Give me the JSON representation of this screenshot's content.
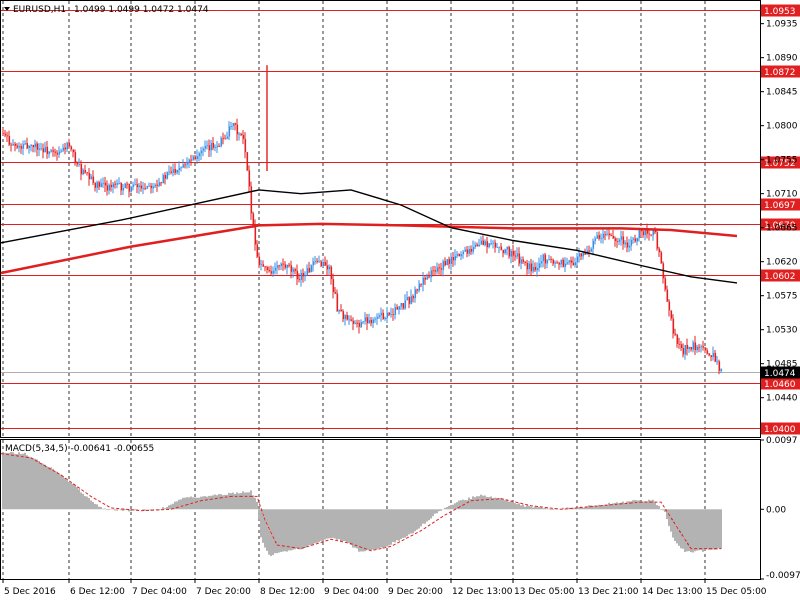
{
  "header": {
    "symbol": "EURUSD,H1",
    "ohlc": "1.0499 1.0499 1.0472 1.0474",
    "macd": "MACD(5,34,5) -0.00641 -0.00655"
  },
  "colors": {
    "background": "#ffffff",
    "bull": "#3a8ee6",
    "bear": "#e02020",
    "ma_fast": "#000000",
    "ma_slow": "#e02020",
    "level_line": "#e02020",
    "macd_hist": "#808080",
    "macd_signal": "#e02020"
  },
  "chart_data": [
    {
      "type": "candlestick",
      "title": "EURUSD,H1",
      "ylim": [
        1.0388,
        1.0965
      ],
      "y_ticks": [
        "1.0935",
        "1.0890",
        "1.0845",
        "1.0800",
        "1.0755",
        "1.0710",
        "1.0665",
        "1.0620",
        "1.0575",
        "1.0530",
        "1.0485",
        "1.0440"
      ],
      "x_labels": [
        "5 Dec 2016",
        "6 Dec 12:00",
        "7 Dec 04:00",
        "7 Dec 20:00",
        "8 Dec 12:00",
        "9 Dec 04:00",
        "9 Dec 20:00",
        "12 Dec 13:00",
        "13 Dec 05:00",
        "13 Dec 21:00",
        "14 Dec 13:00",
        "15 Dec 05:00"
      ],
      "levels": [
        "1.0953",
        "1.0872",
        "1.0752",
        "1.0697",
        "1.0670",
        "1.0602",
        "1.0460",
        "1.0400"
      ],
      "current_price": "1.0474",
      "close_path": [
        [
          0,
          1.079
        ],
        [
          8,
          1.077
        ],
        [
          16,
          1.0775
        ],
        [
          24,
          1.0765
        ],
        [
          28,
          1.076
        ],
        [
          33,
          1.0775
        ],
        [
          40,
          1.074
        ],
        [
          48,
          1.072
        ],
        [
          56,
          1.072
        ],
        [
          64,
          1.0718
        ],
        [
          72,
          1.072
        ],
        [
          80,
          1.0728
        ],
        [
          88,
          1.0745
        ],
        [
          96,
          1.076
        ],
        [
          104,
          1.077
        ],
        [
          110,
          1.078
        ],
        [
          116,
          1.08
        ],
        [
          121,
          1.078
        ],
        [
          123,
          1.074
        ],
        [
          125,
          1.069
        ],
        [
          128,
          1.0625
        ],
        [
          132,
          1.061
        ],
        [
          136,
          1.0608
        ],
        [
          140,
          1.0615
        ],
        [
          144,
          1.061
        ],
        [
          148,
          1.06
        ],
        [
          152,
          1.0605
        ],
        [
          156,
          1.0615
        ],
        [
          160,
          1.062
        ],
        [
          164,
          1.061
        ],
        [
          168,
          1.056
        ],
        [
          172,
          1.0545
        ],
        [
          176,
          1.0535
        ],
        [
          180,
          1.054
        ],
        [
          186,
          1.0545
        ],
        [
          192,
          1.055
        ],
        [
          200,
          1.056
        ],
        [
          206,
          1.0575
        ],
        [
          212,
          1.06
        ],
        [
          218,
          1.061
        ],
        [
          224,
          1.062
        ],
        [
          232,
          1.0635
        ],
        [
          240,
          1.0645
        ],
        [
          248,
          1.064
        ],
        [
          256,
          1.063
        ],
        [
          262,
          1.0615
        ],
        [
          266,
          1.061
        ],
        [
          270,
          1.0625
        ],
        [
          276,
          1.062
        ],
        [
          284,
          1.0618
        ],
        [
          292,
          1.063
        ],
        [
          298,
          1.065
        ],
        [
          304,
          1.0655
        ],
        [
          310,
          1.065
        ],
        [
          314,
          1.064
        ],
        [
          318,
          1.0655
        ],
        [
          323,
          1.0662
        ],
        [
          327,
          1.0655
        ],
        [
          331,
          1.06
        ],
        [
          334,
          1.055
        ],
        [
          337,
          1.052
        ],
        [
          340,
          1.05
        ],
        [
          344,
          1.051
        ],
        [
          348,
          1.0505
        ],
        [
          352,
          1.05
        ],
        [
          356,
          1.0499
        ],
        [
          360,
          1.0474
        ]
      ],
      "candle_count": 360,
      "x_tick_candles": [
        1,
        34,
        65,
        97,
        129,
        161,
        193,
        225,
        256,
        288,
        320,
        352
      ],
      "ma_fast": [
        [
          0,
          1.0645
        ],
        [
          60,
          1.0675
        ],
        [
          129,
          1.0715
        ],
        [
          150,
          1.071
        ],
        [
          175,
          1.0715
        ],
        [
          200,
          1.0695
        ],
        [
          225,
          1.0665
        ],
        [
          256,
          1.0648
        ],
        [
          288,
          1.0635
        ],
        [
          320,
          1.0615
        ],
        [
          345,
          1.06
        ],
        [
          368,
          1.0592
        ]
      ],
      "ma_slow": [
        [
          0,
          1.0605
        ],
        [
          65,
          1.064
        ],
        [
          129,
          1.0668
        ],
        [
          160,
          1.067
        ],
        [
          200,
          1.0668
        ],
        [
          256,
          1.0664
        ],
        [
          310,
          1.0664
        ],
        [
          335,
          1.0662
        ],
        [
          368,
          1.0654
        ]
      ]
    },
    {
      "type": "histogram",
      "title": "MACD(5,34,5)",
      "ylim": [
        -0.00976,
        0.0097
      ],
      "y_ticks": [
        "0.0097",
        "0.00",
        "-0.00976"
      ],
      "hist_path": [
        [
          0,
          0.008
        ],
        [
          12,
          0.0078
        ],
        [
          24,
          0.006
        ],
        [
          36,
          0.0035
        ],
        [
          46,
          0.001
        ],
        [
          52,
          0.0
        ],
        [
          65,
          -0.0002
        ],
        [
          80,
          0.0
        ],
        [
          90,
          0.0015
        ],
        [
          100,
          0.0018
        ],
        [
          115,
          0.0022
        ],
        [
          125,
          0.0025
        ],
        [
          128,
          0.0012
        ],
        [
          130,
          -0.004
        ],
        [
          134,
          -0.0065
        ],
        [
          140,
          -0.006
        ],
        [
          150,
          -0.0055
        ],
        [
          165,
          -0.004
        ],
        [
          172,
          -0.0045
        ],
        [
          180,
          -0.006
        ],
        [
          190,
          -0.0055
        ],
        [
          205,
          -0.0035
        ],
        [
          218,
          -0.0005
        ],
        [
          228,
          0.001
        ],
        [
          240,
          0.002
        ],
        [
          250,
          0.0015
        ],
        [
          262,
          0.0005
        ],
        [
          275,
          0.0
        ],
        [
          290,
          0.0003
        ],
        [
          305,
          0.0008
        ],
        [
          318,
          0.0012
        ],
        [
          326,
          0.0012
        ],
        [
          332,
          -0.0005
        ],
        [
          336,
          -0.004
        ],
        [
          342,
          -0.006
        ],
        [
          352,
          -0.0058
        ],
        [
          360,
          -0.0055
        ]
      ],
      "signal_path": [
        [
          0,
          0.0078
        ],
        [
          15,
          0.0072
        ],
        [
          30,
          0.0048
        ],
        [
          45,
          0.0018
        ],
        [
          55,
          0.0002
        ],
        [
          70,
          -0.0002
        ],
        [
          85,
          0.0
        ],
        [
          100,
          0.0012
        ],
        [
          115,
          0.0018
        ],
        [
          128,
          0.0018
        ],
        [
          132,
          -0.0015
        ],
        [
          138,
          -0.005
        ],
        [
          150,
          -0.0055
        ],
        [
          165,
          -0.0042
        ],
        [
          175,
          -0.0048
        ],
        [
          185,
          -0.0058
        ],
        [
          195,
          -0.0052
        ],
        [
          210,
          -0.003
        ],
        [
          222,
          -0.0008
        ],
        [
          235,
          0.0012
        ],
        [
          250,
          0.0015
        ],
        [
          265,
          0.0005
        ],
        [
          280,
          0.0
        ],
        [
          300,
          0.0005
        ],
        [
          320,
          0.001
        ],
        [
          330,
          0.001
        ],
        [
          338,
          -0.0025
        ],
        [
          345,
          -0.0055
        ],
        [
          360,
          -0.0055
        ]
      ]
    }
  ]
}
